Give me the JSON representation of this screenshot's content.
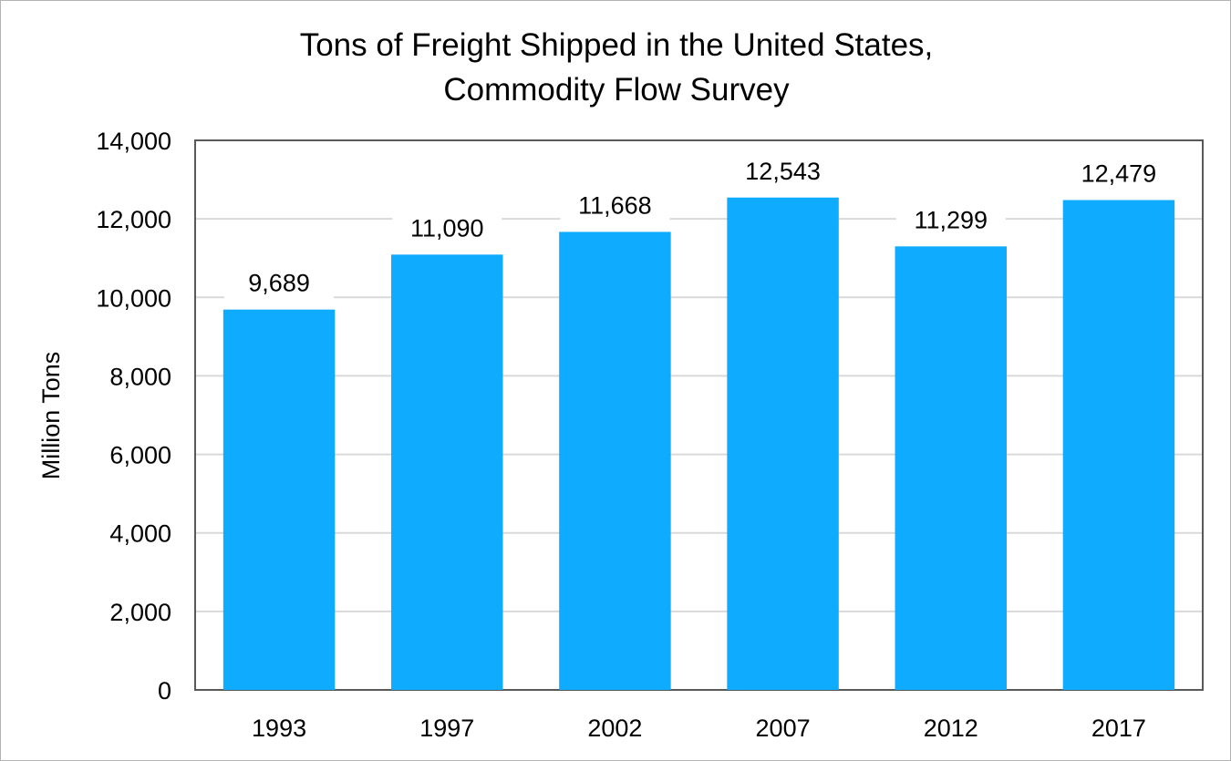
{
  "chart_data": {
    "type": "bar",
    "title_lines": [
      "Tons of Freight Shipped in the United States,",
      "Commodity Flow Survey"
    ],
    "xlabel": "",
    "ylabel": "Million Tons",
    "categories": [
      "1993",
      "1997",
      "2002",
      "2007",
      "2012",
      "2017"
    ],
    "values": [
      9689,
      11090,
      11668,
      12543,
      11299,
      12479
    ],
    "value_labels": [
      "9,689",
      "11,090",
      "11,668",
      "12,543",
      "11,299",
      "12,479"
    ],
    "ylim": [
      0,
      14000
    ],
    "yticks": [
      0,
      2000,
      4000,
      6000,
      8000,
      10000,
      12000,
      14000
    ],
    "ytick_labels": [
      "0",
      "2,000",
      "4,000",
      "6,000",
      "8,000",
      "10,000",
      "12,000",
      "14,000"
    ],
    "bar_color": "#0fabff",
    "grid": true,
    "grid_color": "#d9d9d9",
    "legend": "none"
  }
}
